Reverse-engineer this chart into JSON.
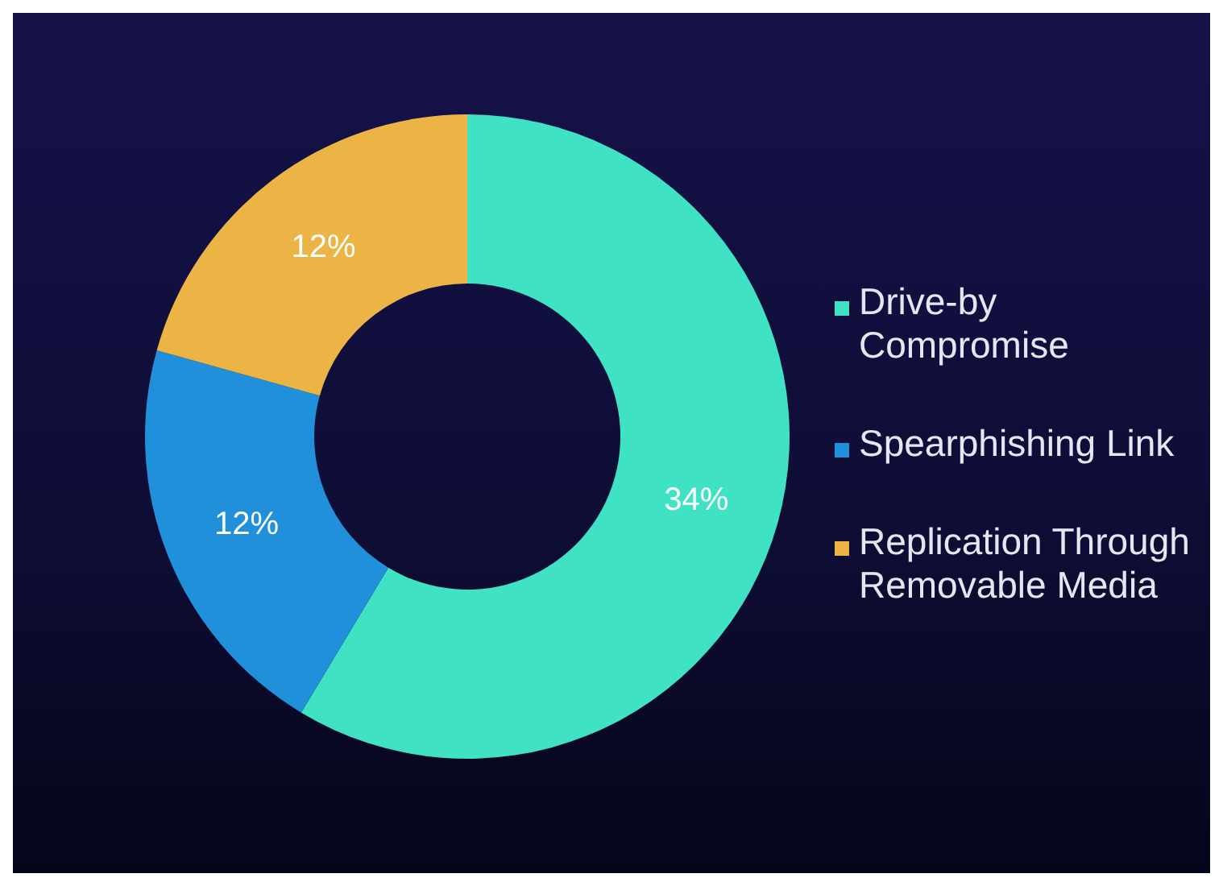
{
  "chart_data": {
    "type": "donut",
    "categories": [
      "Drive-by Compromise",
      "Spearphishing Link",
      "Replication Through Removable Media"
    ],
    "values": [
      34,
      12,
      12
    ],
    "value_labels": [
      "34%",
      "12%",
      "12%"
    ],
    "colors": [
      "#3fe3c3",
      "#2190db",
      "#ebb445"
    ],
    "legend": "right"
  }
}
